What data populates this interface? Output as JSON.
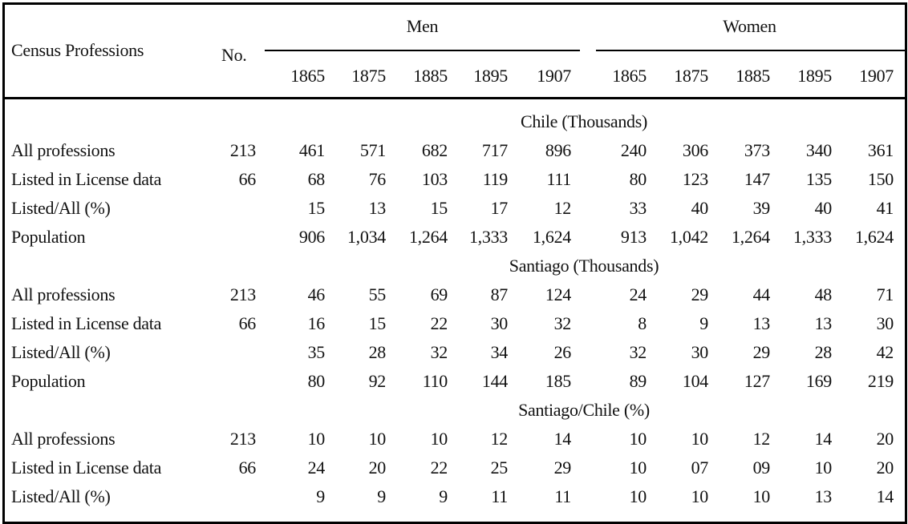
{
  "header": {
    "col_label": "Census Professions",
    "no_label": "No.",
    "group_men": "Men",
    "group_women": "Women",
    "years_men": [
      "1865",
      "1875",
      "1885",
      "1895",
      "1907"
    ],
    "years_women": [
      "1865",
      "1875",
      "1885",
      "1895",
      "1907"
    ]
  },
  "sections": [
    {
      "title": "Chile (Thousands)",
      "rows": [
        {
          "label": "All professions",
          "no": "213",
          "men": [
            "461",
            "571",
            "682",
            "717",
            "896"
          ],
          "women": [
            "240",
            "306",
            "373",
            "340",
            "361"
          ]
        },
        {
          "label": "Listed in License data",
          "no": "66",
          "men": [
            "68",
            "76",
            "103",
            "119",
            "111"
          ],
          "women": [
            "80",
            "123",
            "147",
            "135",
            "150"
          ]
        },
        {
          "label": "Listed/All (%)",
          "no": "",
          "men": [
            "15",
            "13",
            "15",
            "17",
            "12"
          ],
          "women": [
            "33",
            "40",
            "39",
            "40",
            "41"
          ]
        },
        {
          "label": "Population",
          "no": "",
          "men": [
            "906",
            "1,034",
            "1,264",
            "1,333",
            "1,624"
          ],
          "women": [
            "913",
            "1,042",
            "1,264",
            "1,333",
            "1,624"
          ]
        }
      ]
    },
    {
      "title": "Santiago (Thousands)",
      "rows": [
        {
          "label": "All professions",
          "no": "213",
          "men": [
            "46",
            "55",
            "69",
            "87",
            "124"
          ],
          "women": [
            "24",
            "29",
            "44",
            "48",
            "71"
          ]
        },
        {
          "label": "Listed in License data",
          "no": "66",
          "men": [
            "16",
            "15",
            "22",
            "30",
            "32"
          ],
          "women": [
            "8",
            "9",
            "13",
            "13",
            "30"
          ]
        },
        {
          "label": "Listed/All (%)",
          "no": "",
          "men": [
            "35",
            "28",
            "32",
            "34",
            "26"
          ],
          "women": [
            "32",
            "30",
            "29",
            "28",
            "42"
          ]
        },
        {
          "label": "Population",
          "no": "",
          "men": [
            "80",
            "92",
            "110",
            "144",
            "185"
          ],
          "women": [
            "89",
            "104",
            "127",
            "169",
            "219"
          ]
        }
      ]
    },
    {
      "title": "Santiago/Chile (%)",
      "rows": [
        {
          "label": "All professions",
          "no": "213",
          "men": [
            "10",
            "10",
            "10",
            "12",
            "14"
          ],
          "women": [
            "10",
            "10",
            "12",
            "14",
            "20"
          ]
        },
        {
          "label": "Listed in License data",
          "no": "66",
          "men": [
            "24",
            "20",
            "22",
            "25",
            "29"
          ],
          "women": [
            "10",
            "07",
            "09",
            "10",
            "20"
          ]
        },
        {
          "label": "Listed/All (%)",
          "no": "",
          "men": [
            "9",
            "9",
            "9",
            "11",
            "11"
          ],
          "women": [
            "10",
            "10",
            "10",
            "13",
            "14"
          ]
        }
      ]
    }
  ]
}
